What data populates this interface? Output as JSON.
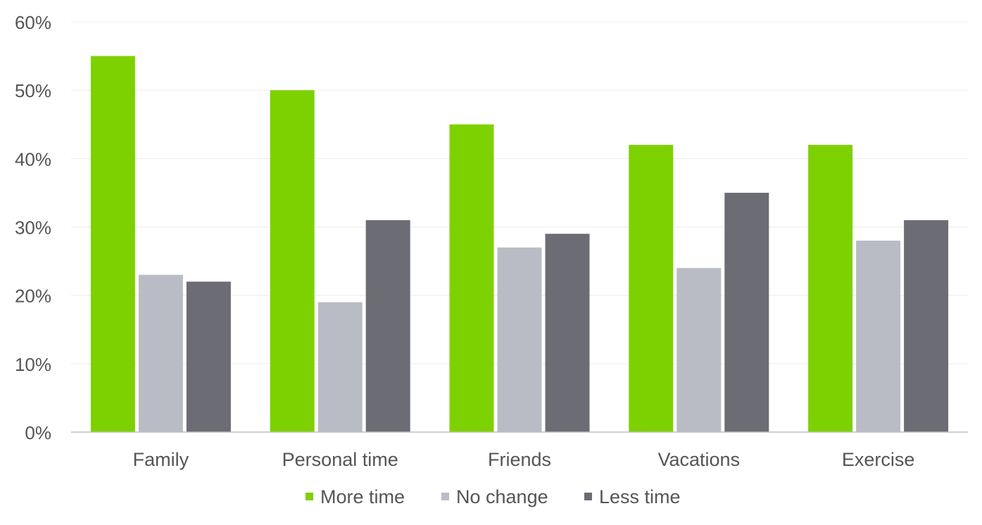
{
  "chart_data": {
    "type": "bar",
    "title": "",
    "xlabel": "",
    "ylabel": "",
    "categories": [
      "Family",
      "Personal time",
      "Friends",
      "Vacations",
      "Exercise"
    ],
    "series": [
      {
        "name": "More time",
        "color": "#7ed100",
        "values": [
          55,
          50,
          45,
          42,
          42
        ]
      },
      {
        "name": "No change",
        "color": "#babcc5",
        "values": [
          23,
          19,
          27,
          24,
          28
        ]
      },
      {
        "name": "Less time",
        "color": "#6c6c75",
        "values": [
          22,
          31,
          29,
          35,
          31
        ]
      }
    ],
    "ylim": [
      0,
      60
    ],
    "yticks": [
      0,
      10,
      20,
      30,
      40,
      50,
      60
    ],
    "ytick_labels": [
      "0%",
      "10%",
      "20%",
      "30%",
      "40%",
      "50%",
      "60%"
    ],
    "grid": true,
    "legend_position": "bottom"
  }
}
